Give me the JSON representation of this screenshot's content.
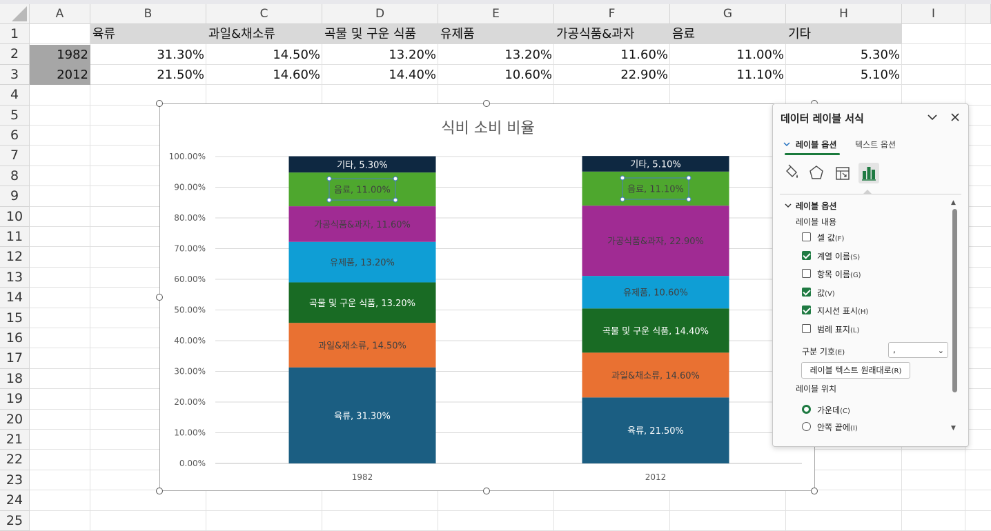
{
  "columns": [
    "A",
    "B",
    "C",
    "D",
    "E",
    "F",
    "G",
    "H",
    "I"
  ],
  "rows": [
    "1",
    "2",
    "3",
    "4",
    "5",
    "6",
    "7",
    "8",
    "9",
    "10",
    "11",
    "12",
    "13",
    "14",
    "15",
    "16",
    "17",
    "18",
    "19",
    "20",
    "21",
    "22",
    "23",
    "24",
    "25"
  ],
  "table": {
    "headers": [
      "육류",
      "과일&채소류",
      "곡물 및 구운 식품",
      "유제품",
      "가공식품&과자",
      "음료",
      "기타"
    ],
    "rows": [
      {
        "year": "1982",
        "values": [
          "31.30%",
          "14.50%",
          "13.20%",
          "13.20%",
          "11.60%",
          "11.00%",
          "5.30%"
        ]
      },
      {
        "year": "2012",
        "values": [
          "21.50%",
          "14.60%",
          "14.40%",
          "10.60%",
          "22.90%",
          "11.10%",
          "5.10%"
        ]
      }
    ]
  },
  "chart_data": {
    "type": "bar",
    "stacked": "percent",
    "title": "식비 소비 비율",
    "categories": [
      "1982",
      "2012"
    ],
    "ylim": [
      0,
      100
    ],
    "ytick_labels": [
      "0.00%",
      "10.00%",
      "20.00%",
      "30.00%",
      "40.00%",
      "50.00%",
      "60.00%",
      "70.00%",
      "80.00%",
      "90.00%",
      "100.00%"
    ],
    "grid": true,
    "legend": "none",
    "series": [
      {
        "name": "육류",
        "values": [
          31.3,
          21.5
        ],
        "color": "#1b5e82",
        "labels": [
          "육류, 31.30%",
          "육류, 21.50%"
        ],
        "label_color": "#ffffff"
      },
      {
        "name": "과일&채소류",
        "values": [
          14.5,
          14.6
        ],
        "color": "#e97132",
        "labels": [
          "과일&채소류, 14.50%",
          "과일&채소류, 14.60%"
        ],
        "label_color": "#404040"
      },
      {
        "name": "곡물 및 구운 식품",
        "values": [
          13.2,
          14.4
        ],
        "color": "#196b24",
        "labels": [
          "곡물 및 구운 식품, 13.20%",
          "곡물 및 구운 식품, 14.40%"
        ],
        "label_color": "#ffffff"
      },
      {
        "name": "유제품",
        "values": [
          13.2,
          10.6
        ],
        "color": "#0f9ed5",
        "labels": [
          "유제품, 13.20%",
          "유제품, 10.60%"
        ],
        "label_color": "#404040"
      },
      {
        "name": "가공식품&과자",
        "values": [
          11.6,
          22.9
        ],
        "color": "#a02b93",
        "labels": [
          "가공식품&과자, 11.60%",
          "가공식품&과자, 22.90%"
        ],
        "label_color": "#404040"
      },
      {
        "name": "음료",
        "values": [
          11.0,
          11.1
        ],
        "color": "#4ea72e",
        "labels": [
          "음료, 11.00%",
          "음료, 11.10%"
        ],
        "label_color": "#404040"
      },
      {
        "name": "기타",
        "values": [
          5.3,
          5.1
        ],
        "color": "#0e2841",
        "labels": [
          "기타, 5.30%",
          "기타, 5.10%"
        ],
        "label_color": "#ffffff"
      }
    ]
  },
  "panel": {
    "title": "데이터 레이블 서식",
    "tab_label_options": "레이블 옵션",
    "tab_text_options": "텍스트 옵션",
    "section_title": "레이블 옵션",
    "contains_heading": "레이블 내용",
    "checkboxes": [
      {
        "label": "셀 값",
        "key": "(F)",
        "checked": false
      },
      {
        "label": "계열 이름",
        "key": "(S)",
        "checked": true
      },
      {
        "label": "항목 이름",
        "key": "(G)",
        "checked": false
      },
      {
        "label": "값",
        "key": "(V)",
        "checked": true
      },
      {
        "label": "지시선 표시",
        "key": "(H)",
        "checked": true
      },
      {
        "label": "범례 표지",
        "key": "(L)",
        "checked": false
      }
    ],
    "separator_label": "구분 기호",
    "separator_key": "(E)",
    "separator_value": ",",
    "reset_label": "레이블 텍스트 원래대로",
    "reset_key": "(R)",
    "position_heading": "레이블 위치",
    "radios": [
      {
        "label": "가운데",
        "key": "(C)",
        "checked": true
      },
      {
        "label": "안쪽 끝에",
        "key": "(I)",
        "checked": false
      }
    ],
    "accent_color": "#1f7a42"
  }
}
